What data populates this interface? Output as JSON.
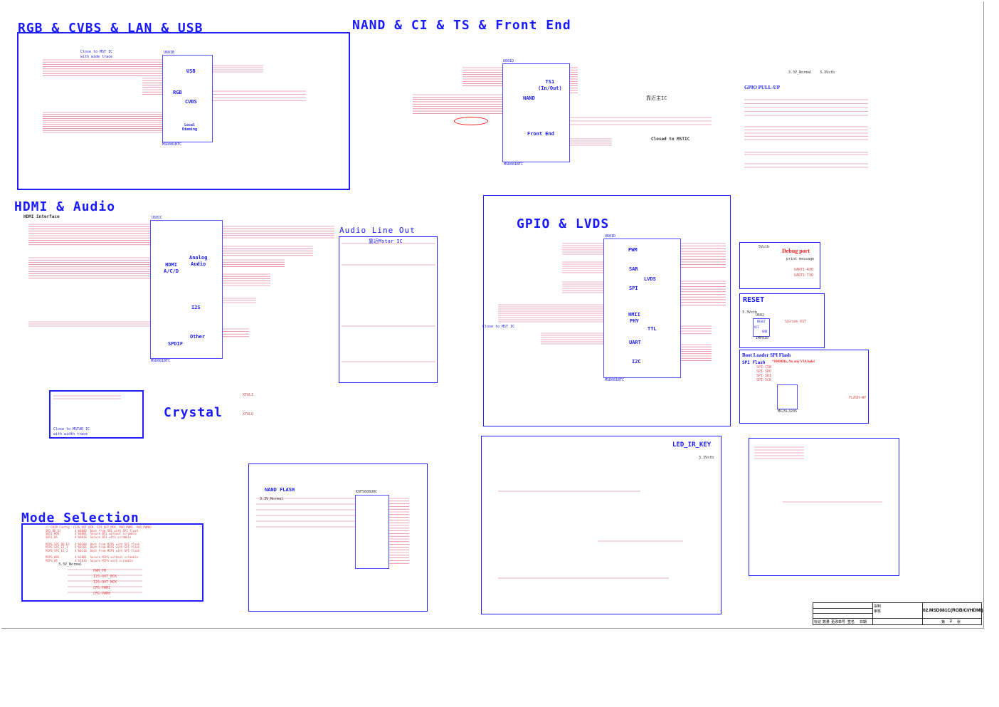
{
  "sections": {
    "rgb": {
      "title": "RGB & CVBS & LAN & USB",
      "note": "Close to MST IC\nwith wide trace",
      "chip_ref": "U601B",
      "chip_part": "MSD081BTC",
      "blocks": [
        "USB",
        "RGB",
        "CVBS",
        "Local\nDimming"
      ]
    },
    "nand": {
      "title": "NAND & CI & TS & Front End",
      "chip_ref": "U601D",
      "chip_part": "MSD081BTC",
      "blocks": [
        "NAND",
        "TS1\n(In/Out)",
        "Front End"
      ],
      "note_cn": "靠近主IC",
      "note_close": "Closed to MSTIC"
    },
    "gpio_pullup": {
      "title": "GPIO PULL-UP",
      "supplies": [
        "3.3V_Normal",
        "3.3Vstb"
      ]
    },
    "hdmi": {
      "title": "HDMI & Audio",
      "subtitle": "HDMI Interface",
      "chip_ref": "U601C",
      "chip_part": "MSD081BTC",
      "blocks": [
        "HDMI\nA/C/D",
        "Analog\nAudio",
        "I2S",
        "Other",
        "SPDIF"
      ]
    },
    "audio": {
      "title": "Audio Line Out",
      "note": "靠近Mstar IC"
    },
    "gpio_lvds": {
      "title": "GPIO & LVDS",
      "chip_ref": "U601D",
      "chip_part": "MSD081BTC",
      "blocks": [
        "PWM",
        "SAR",
        "SPI",
        "LVDS",
        "HMII\nPHY",
        "TTL",
        "UART",
        "I2C"
      ],
      "note": "Close to MST IC"
    },
    "debug": {
      "title": "Debug port",
      "note": "print message",
      "supply": "5Vstb",
      "nets": [
        "UART1-RXD",
        "UART1-TXD"
      ]
    },
    "reset": {
      "title": "RESET",
      "supply": "3.3Vstb",
      "chip_ref": "U602",
      "chip_part": "IMP810",
      "pins": [
        "RESET",
        "VCC",
        "GND"
      ],
      "net": "System RST"
    },
    "bootloader": {
      "title": "Boot Loader SPI Flash",
      "subtitle": "SPI Flash",
      "warning": "*100MHz, No any VIA hole!",
      "chip_part": "MX25L3205",
      "nets": [
        "SPI-CSN",
        "SPI-SDO",
        "SPI-SDI",
        "SPI-SCK"
      ],
      "net_wp": "FLASH-WP"
    },
    "cap_note": {
      "text": "Close to MSTAR IC\nwith width trace"
    },
    "crystal": {
      "title": "Crystal",
      "nets": [
        "XTALI",
        "XTALO"
      ]
    },
    "nand_flash": {
      "title": "NAND FLASH",
      "supply": "3.3V_Normal",
      "chip_part": "K9F5608U0C"
    },
    "led_ir_key": {
      "title": "LED_IR_KEY",
      "supply": "3.3Vstb"
    },
    "mode": {
      "title": "Mode Selection",
      "lines": [
        "// CHIP Config  {I2S_OUT_BCK, I2S_OUT_MCK, PAD_PWM1, PAD_PWM0}",
        "SB1_BD_EJ        4'b0000  Boot from SB1 with SPI flash",
        "SB51_WOS         4'b0001  Secure B51 without scramble",
        "SB51_WS          4'b0010  Secure B51 with scramble",
        "",
        "MIPS_SPI_BD_EJ   4'b0100  Boot from MIPS with SPI flash",
        "MIPS_SPI_EJ_1    4'b0101  Boot from MIPS with SPI flash",
        "MIPS_SPI_EJ_2    4'b0110  Boot from MIPS with SPI flash",
        "",
        "MIPS_WOS         4'b1001  Secure MIPS without scramble",
        "MIPS_WS          4'b1010  Secure MIPS with scramble"
      ],
      "supply": "3.3V_Normal",
      "nets": [
        "PWM_PM",
        "I2S-OUT_BCK",
        "I2S-OUT_MCK",
        "CFG-PWM1",
        "CFG-PWM0"
      ]
    }
  },
  "title_block": {
    "drawn": "拟制",
    "checked": "审核",
    "cols": [
      "标记",
      "数量",
      "更改单号",
      "签名",
      "日期"
    ],
    "doc_title": "02.MSD081C(RGB/CI/HDMI)",
    "sheet_label": "第",
    "sheet_no": "2",
    "sheet_suffix": "张"
  },
  "colors": {
    "section": "#1a1aff",
    "wire": "#e06080",
    "net_label": "#ff2020",
    "highlight": "#ff0000"
  }
}
